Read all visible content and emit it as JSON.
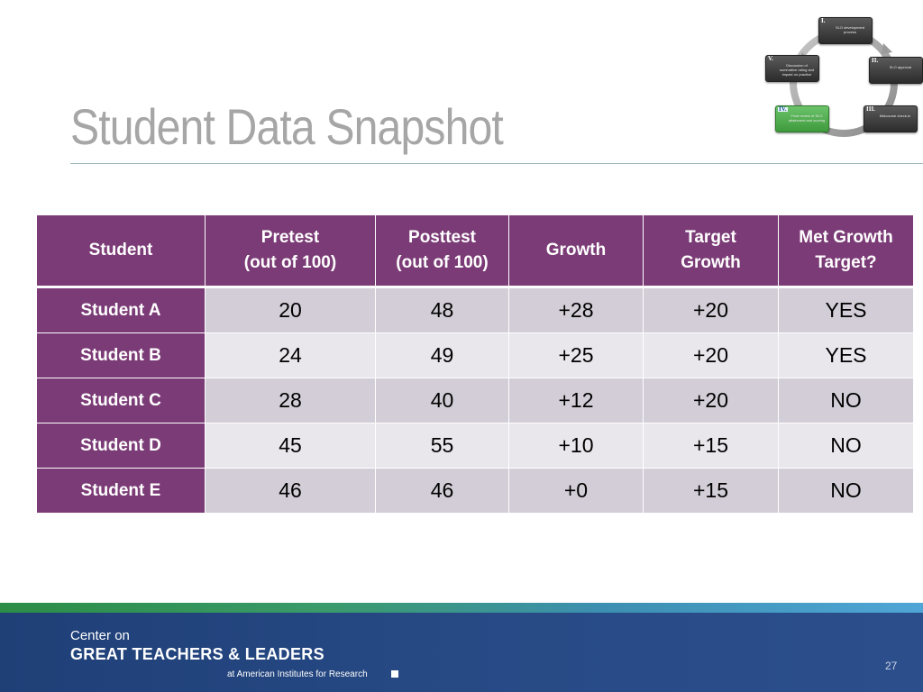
{
  "slide": {
    "title": "Student Data Snapshot",
    "page_number": "27"
  },
  "cycle_diagram": {
    "stages": [
      {
        "num": "I.",
        "label": "SLO development process",
        "active": false
      },
      {
        "num": "II.",
        "label": "SLO approval",
        "active": false
      },
      {
        "num": "III.",
        "label": "Midcourse check-in",
        "active": false
      },
      {
        "num": "IV.",
        "label": "Final review of SLO attainment and scoring",
        "active": true
      },
      {
        "num": "V.",
        "label": "Discussion of summative rating and impact on practice",
        "active": false
      }
    ],
    "active_color": "#52b050"
  },
  "table": {
    "headers": [
      "Student",
      "Pretest\n(out of 100)",
      "Posttest\n(out of 100)",
      "Growth",
      "Target\nGrowth",
      "Met Growth\nTarget?"
    ],
    "rows": [
      {
        "student": "Student A",
        "pretest": "20",
        "posttest": "48",
        "growth": "+28",
        "target": "+20",
        "met": "YES"
      },
      {
        "student": "Student B",
        "pretest": "24",
        "posttest": "49",
        "growth": "+25",
        "target": "+20",
        "met": "YES"
      },
      {
        "student": "Student C",
        "pretest": "28",
        "posttest": "40",
        "growth": "+12",
        "target": "+20",
        "met": "NO"
      },
      {
        "student": "Student D",
        "pretest": "45",
        "posttest": "55",
        "growth": "+10",
        "target": "+15",
        "met": "NO"
      },
      {
        "student": "Student E",
        "pretest": "46",
        "posttest": "46",
        "growth": "+0",
        "target": "+15",
        "met": "NO"
      }
    ],
    "header_color": "#7b3b76"
  },
  "footer": {
    "line1": "Center on",
    "line2": "GREAT TEACHERS & LEADERS",
    "line3": "at American Institutes for Research",
    "bg_color": "#234683"
  }
}
